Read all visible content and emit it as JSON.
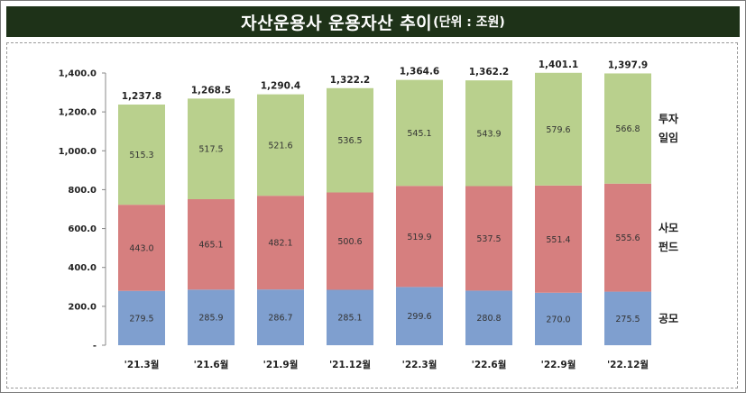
{
  "header": {
    "title_main": "자산운용사 운용자산 추이",
    "title_unit": "(단위 : 조원)"
  },
  "chart_data": {
    "type": "bar",
    "stacked": true,
    "categories": [
      "'21.3월",
      "'21.6월",
      "'21.9월",
      "'21.12월",
      "'22.3월",
      "'22.6월",
      "'22.9월",
      "'22.12월"
    ],
    "series": [
      {
        "name": "공모",
        "values": [
          279.5,
          285.9,
          286.7,
          285.1,
          299.6,
          280.8,
          270.0,
          275.5
        ],
        "color": "#7f9fcf"
      },
      {
        "name": "사모펀드",
        "values": [
          443.0,
          465.1,
          482.1,
          500.6,
          519.9,
          537.5,
          551.4,
          555.6
        ],
        "color": "#d67f7f"
      },
      {
        "name": "투자일임",
        "values": [
          515.3,
          517.5,
          521.6,
          536.5,
          545.1,
          543.9,
          579.6,
          566.8
        ],
        "color": "#b9d08d"
      }
    ],
    "totals": [
      "1,237.8",
      "1,268.5",
      "1,290.4",
      "1,322.2",
      "1,364.6",
      "1,362.2",
      "1,401.1",
      "1,397.9"
    ],
    "series_labels": [
      [
        "279.5",
        "285.9",
        "286.7",
        "285.1",
        "299.6",
        "280.8",
        "270.0",
        "275.5"
      ],
      [
        "443.0",
        "465.1",
        "482.1",
        "500.6",
        "519.9",
        "537.5",
        "551.4",
        "555.6"
      ],
      [
        "515.3",
        "517.5",
        "521.6",
        "536.5",
        "545.1",
        "543.9",
        "579.6",
        "566.8"
      ]
    ],
    "legend_lines": [
      [
        "공모"
      ],
      [
        "사모",
        "펀드"
      ],
      [
        "투자",
        "일임"
      ]
    ],
    "y_ticks": [
      0,
      200,
      400,
      600,
      800,
      1000,
      1200,
      1400
    ],
    "y_tick_labels": [
      "-",
      "200.0",
      "400.0",
      "600.0",
      "800.0",
      "1,000.0",
      "1,200.0",
      "1,400.0"
    ],
    "ylim": [
      0,
      1400
    ],
    "grid": false,
    "legend_position": "right"
  }
}
